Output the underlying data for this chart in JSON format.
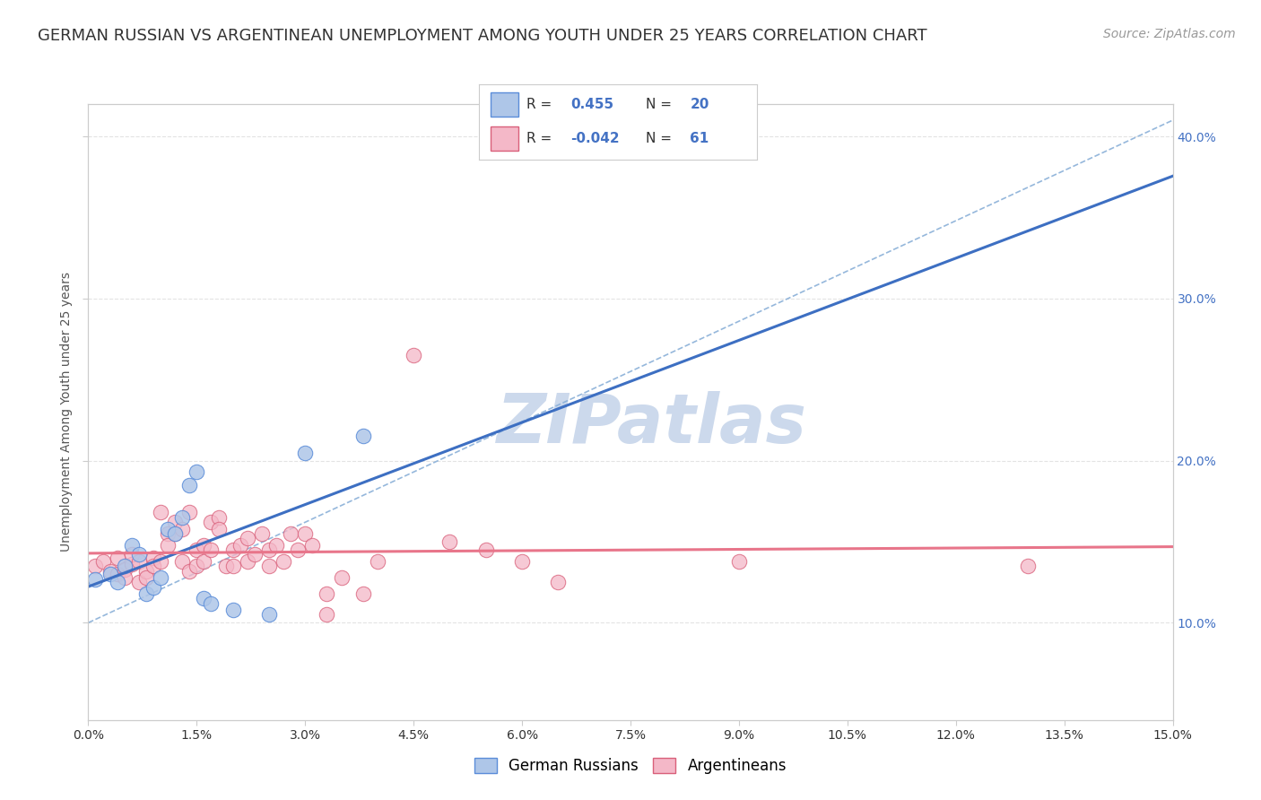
{
  "title": "GERMAN RUSSIAN VS ARGENTINEAN UNEMPLOYMENT AMONG YOUTH UNDER 25 YEARS CORRELATION CHART",
  "source": "Source: ZipAtlas.com",
  "ylabel": "Unemployment Among Youth under 25 years",
  "xlabel_ticks": [
    "0.0%",
    "1.5%",
    "3.0%",
    "4.5%",
    "6.0%",
    "7.5%",
    "9.0%",
    "10.5%",
    "12.0%",
    "13.5%",
    "15.0%"
  ],
  "xlim": [
    0.0,
    0.15
  ],
  "ylim": [
    0.04,
    0.42
  ],
  "watermark": "ZIPatlas",
  "blue_color": "#aec6e8",
  "blue_edge_color": "#5b8dd9",
  "pink_color": "#f4b8c8",
  "pink_edge_color": "#d9607a",
  "blue_line_color": "#3d6fc2",
  "pink_line_color": "#e8758a",
  "dashed_line_color": "#8ab0d8",
  "tick_label_blue_color": "#4472c4",
  "grid_color": "#e0e0e0",
  "background_color": "#ffffff",
  "title_color": "#333333",
  "watermark_color": "#ccd9ec",
  "blue_scatter": [
    [
      0.001,
      0.127
    ],
    [
      0.003,
      0.13
    ],
    [
      0.004,
      0.125
    ],
    [
      0.005,
      0.135
    ],
    [
      0.006,
      0.148
    ],
    [
      0.007,
      0.142
    ],
    [
      0.008,
      0.118
    ],
    [
      0.009,
      0.122
    ],
    [
      0.01,
      0.128
    ],
    [
      0.011,
      0.158
    ],
    [
      0.012,
      0.155
    ],
    [
      0.013,
      0.165
    ],
    [
      0.014,
      0.185
    ],
    [
      0.015,
      0.193
    ],
    [
      0.016,
      0.115
    ],
    [
      0.017,
      0.112
    ],
    [
      0.02,
      0.108
    ],
    [
      0.025,
      0.105
    ],
    [
      0.03,
      0.205
    ],
    [
      0.038,
      0.215
    ]
  ],
  "pink_scatter": [
    [
      0.001,
      0.135
    ],
    [
      0.002,
      0.138
    ],
    [
      0.003,
      0.132
    ],
    [
      0.004,
      0.14
    ],
    [
      0.004,
      0.13
    ],
    [
      0.005,
      0.133
    ],
    [
      0.005,
      0.128
    ],
    [
      0.006,
      0.136
    ],
    [
      0.006,
      0.142
    ],
    [
      0.007,
      0.138
    ],
    [
      0.007,
      0.125
    ],
    [
      0.008,
      0.132
    ],
    [
      0.008,
      0.128
    ],
    [
      0.009,
      0.14
    ],
    [
      0.009,
      0.135
    ],
    [
      0.01,
      0.138
    ],
    [
      0.01,
      0.168
    ],
    [
      0.011,
      0.155
    ],
    [
      0.011,
      0.148
    ],
    [
      0.012,
      0.155
    ],
    [
      0.012,
      0.162
    ],
    [
      0.013,
      0.158
    ],
    [
      0.013,
      0.138
    ],
    [
      0.014,
      0.132
    ],
    [
      0.014,
      0.168
    ],
    [
      0.015,
      0.135
    ],
    [
      0.015,
      0.145
    ],
    [
      0.016,
      0.148
    ],
    [
      0.016,
      0.138
    ],
    [
      0.017,
      0.162
    ],
    [
      0.017,
      0.145
    ],
    [
      0.018,
      0.165
    ],
    [
      0.018,
      0.158
    ],
    [
      0.019,
      0.135
    ],
    [
      0.02,
      0.145
    ],
    [
      0.02,
      0.135
    ],
    [
      0.021,
      0.148
    ],
    [
      0.022,
      0.138
    ],
    [
      0.022,
      0.152
    ],
    [
      0.023,
      0.142
    ],
    [
      0.024,
      0.155
    ],
    [
      0.025,
      0.145
    ],
    [
      0.025,
      0.135
    ],
    [
      0.026,
      0.148
    ],
    [
      0.027,
      0.138
    ],
    [
      0.028,
      0.155
    ],
    [
      0.029,
      0.145
    ],
    [
      0.03,
      0.155
    ],
    [
      0.031,
      0.148
    ],
    [
      0.033,
      0.118
    ],
    [
      0.033,
      0.105
    ],
    [
      0.035,
      0.128
    ],
    [
      0.038,
      0.118
    ],
    [
      0.04,
      0.138
    ],
    [
      0.045,
      0.265
    ],
    [
      0.05,
      0.15
    ],
    [
      0.055,
      0.145
    ],
    [
      0.06,
      0.138
    ],
    [
      0.065,
      0.125
    ],
    [
      0.09,
      0.138
    ],
    [
      0.13,
      0.135
    ]
  ],
  "title_fontsize": 13,
  "source_fontsize": 10,
  "axis_label_fontsize": 10,
  "tick_fontsize": 10,
  "legend_fontsize": 12,
  "watermark_fontsize": 55
}
